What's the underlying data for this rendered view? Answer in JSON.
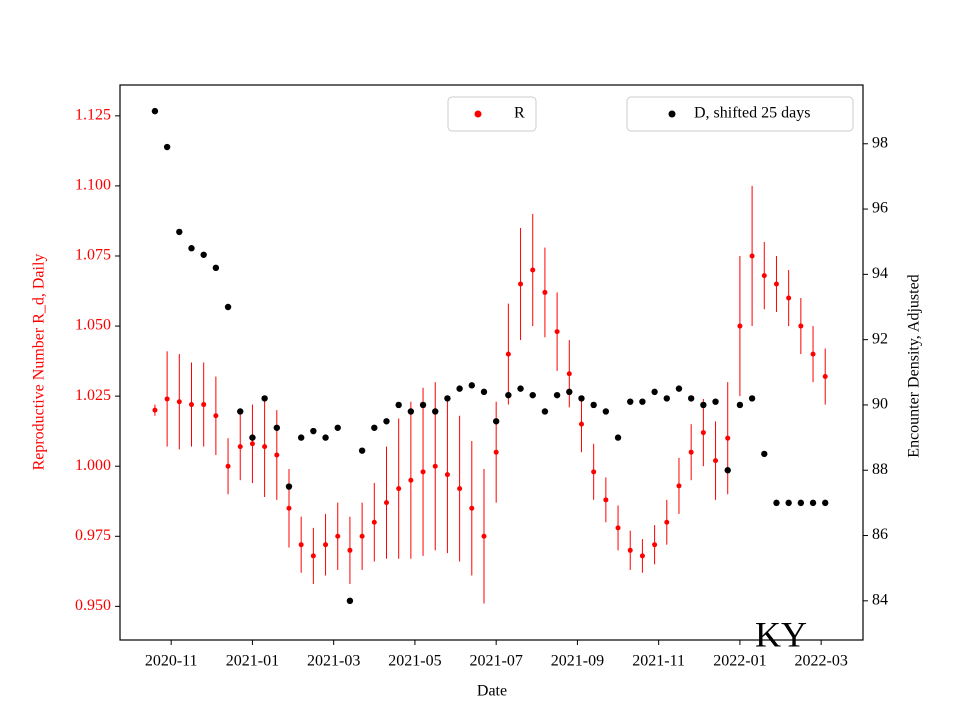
{
  "chart_data": {
    "type": "scatter",
    "x_label": "Date",
    "y_label": "Reproductive Number R_d, Daily",
    "y2_label": "Encounter Density, Adjusted",
    "annotation": "KY",
    "x": [
      -0.4,
      -0.1,
      0.2,
      0.5,
      0.8,
      1.1,
      1.4,
      1.7,
      2.0,
      2.3,
      2.6,
      2.9,
      3.2,
      3.5,
      3.8,
      4.1,
      4.4,
      4.7,
      5.0,
      5.3,
      5.6,
      5.9,
      6.2,
      6.5,
      6.8,
      7.1,
      7.4,
      7.7,
      8.0,
      8.3,
      8.6,
      8.9,
      9.2,
      9.5,
      9.8,
      10.1,
      10.4,
      10.7,
      11.0,
      11.3,
      11.6,
      11.9,
      12.2,
      12.5,
      12.8,
      13.1,
      13.4,
      13.7,
      14.0,
      14.3,
      14.6,
      14.9,
      15.2,
      15.5,
      15.8,
      16.1
    ],
    "series": [
      {
        "name": "R",
        "color": "#ff0000",
        "axis": "y",
        "values": [
          1.02,
          1.024,
          1.023,
          1.022,
          1.022,
          1.018,
          1.0,
          1.007,
          1.008,
          1.007,
          1.004,
          0.985,
          0.972,
          0.968,
          0.972,
          0.975,
          0.97,
          0.975,
          0.98,
          0.987,
          0.992,
          0.995,
          0.998,
          1.0,
          0.997,
          0.992,
          0.985,
          0.975,
          1.005,
          1.04,
          1.065,
          1.07,
          1.062,
          1.048,
          1.033,
          1.015,
          0.998,
          0.988,
          0.978,
          0.97,
          0.968,
          0.972,
          0.98,
          0.993,
          1.005,
          1.012,
          1.002,
          1.01,
          1.05,
          1.075,
          1.068,
          1.065,
          1.06,
          1.05,
          1.04,
          1.032
        ],
        "errors": [
          0.002,
          0.017,
          0.017,
          0.015,
          0.015,
          0.014,
          0.01,
          0.012,
          0.014,
          0.018,
          0.016,
          0.014,
          0.01,
          0.01,
          0.011,
          0.012,
          0.012,
          0.012,
          0.014,
          0.02,
          0.025,
          0.028,
          0.03,
          0.03,
          0.028,
          0.026,
          0.024,
          0.024,
          0.018,
          0.018,
          0.02,
          0.02,
          0.016,
          0.014,
          0.012,
          0.01,
          0.01,
          0.008,
          0.008,
          0.007,
          0.006,
          0.007,
          0.008,
          0.01,
          0.01,
          0.012,
          0.014,
          0.02,
          0.025,
          0.025,
          0.012,
          0.01,
          0.01,
          0.01,
          0.01,
          0.01
        ]
      },
      {
        "name": "D, shifted 25 days",
        "color": "#000000",
        "axis": "y2",
        "values": [
          99.0,
          97.9,
          95.3,
          94.8,
          94.6,
          94.2,
          93.0,
          89.8,
          89.0,
          90.2,
          89.3,
          87.5,
          89.0,
          89.2,
          89.0,
          89.3,
          84.0,
          88.6,
          89.3,
          89.5,
          90.0,
          89.8,
          90.0,
          89.8,
          90.2,
          90.5,
          90.6,
          90.4,
          89.5,
          90.3,
          90.5,
          90.3,
          89.8,
          90.3,
          90.4,
          90.2,
          90.0,
          89.8,
          89.0,
          90.1,
          90.1,
          90.4,
          90.2,
          90.5,
          90.2,
          90.0,
          90.1,
          88.0,
          90.0,
          90.2,
          88.5,
          87.0,
          87.0,
          87.0,
          87.0,
          87.0
        ]
      }
    ],
    "xlim": [
      -1.26,
      17.03
    ],
    "xticks": [
      {
        "value": 0,
        "label": "2020-11"
      },
      {
        "value": 2,
        "label": "2021-01"
      },
      {
        "value": 4,
        "label": "2021-03"
      },
      {
        "value": 6,
        "label": "2021-05"
      },
      {
        "value": 8,
        "label": "2021-07"
      },
      {
        "value": 10,
        "label": "2021-09"
      },
      {
        "value": 12,
        "label": "2021-11"
      },
      {
        "value": 14,
        "label": "2022-01"
      },
      {
        "value": 16,
        "label": "2022-03"
      }
    ],
    "ylim": [
      0.938,
      1.136
    ],
    "yticks": [
      {
        "value": 0.95,
        "label": "0.950"
      },
      0.975,
      {
        "value": 1.0,
        "label": "1.000"
      },
      1.025,
      {
        "value": 1.05,
        "label": "1.050"
      },
      1.075,
      {
        "value": 1.1,
        "label": "1.100"
      },
      1.125
    ],
    "y2lim": [
      82.8,
      99.8
    ],
    "y2ticks": [
      84,
      86,
      88,
      90,
      92,
      94,
      96,
      98
    ]
  }
}
